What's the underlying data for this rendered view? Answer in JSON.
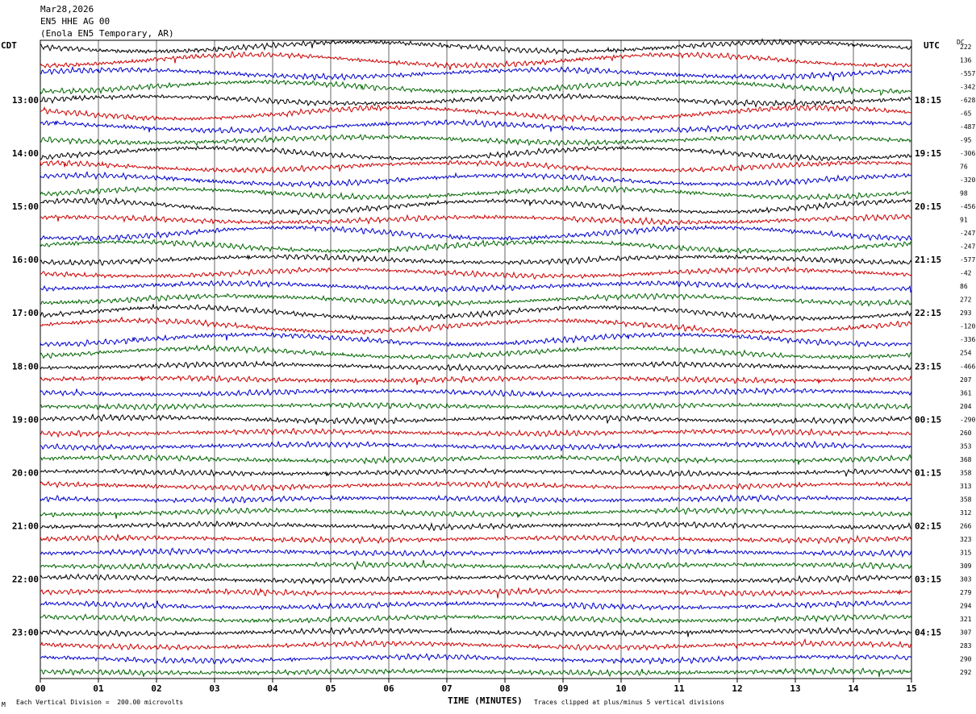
{
  "header": {
    "date": "Mar28,2026",
    "channel": "EN5 HHE AG 00",
    "station": "(Enola EN5 Temporary, AR)"
  },
  "left_axis_label": "CDT",
  "right_axis_label": "UTC",
  "dc_label": "DC",
  "footer": {
    "scale_note": "Each Vertical Division =  200.00 microvolts",
    "corner_mark": "M",
    "clip_note": "Traces clipped at plus/minus 5 vertical divisions"
  },
  "colors": {
    "black": "#000000",
    "red": "#cc0000",
    "blue": "#0000cc",
    "green": "#006600",
    "grid": "#000000"
  },
  "chart_data": {
    "type": "line",
    "title": "",
    "xlabel": "TIME (MINUTES)",
    "ylabel": "",
    "xlim": [
      0,
      15
    ],
    "x_tick_labels": [
      "00",
      "01",
      "02",
      "03",
      "04",
      "05",
      "06",
      "07",
      "08",
      "09",
      "10",
      "11",
      "12",
      "13",
      "14",
      "15"
    ],
    "trace_count": 48,
    "traces_per_hour": 4,
    "minutes_per_trace": 15,
    "trace_colors": [
      "black",
      "red",
      "blue",
      "green"
    ],
    "cdt_hour_labels": [
      "13:00",
      "14:00",
      "15:00",
      "16:00",
      "17:00",
      "18:00",
      "19:00",
      "20:00",
      "21:00",
      "22:00",
      "23:00"
    ],
    "utc_hour_labels": [
      "18:15",
      "19:15",
      "20:15",
      "21:15",
      "22:15",
      "23:15",
      "00:15",
      "01:15",
      "02:15",
      "03:15",
      "04:15"
    ],
    "dc_offsets": [
      "222",
      "136",
      "-557",
      "-342",
      "-628",
      "-65",
      "-487",
      "-95",
      "-306",
      "76",
      "-320",
      "98",
      "-456",
      "91",
      "-247",
      "-247",
      "-577",
      "-42",
      "86",
      "272",
      "293",
      "-120",
      "-336",
      "254",
      "-466",
      "207",
      "361",
      "204",
      "-290",
      "260",
      "353",
      "368",
      "358",
      "313",
      "358",
      "312",
      "266",
      "323",
      "315",
      "309",
      "303",
      "279",
      "294",
      "321",
      "307",
      "283",
      "290",
      "292"
    ],
    "vertical_division_microvolts": 200.0,
    "clip_divisions": 5
  }
}
